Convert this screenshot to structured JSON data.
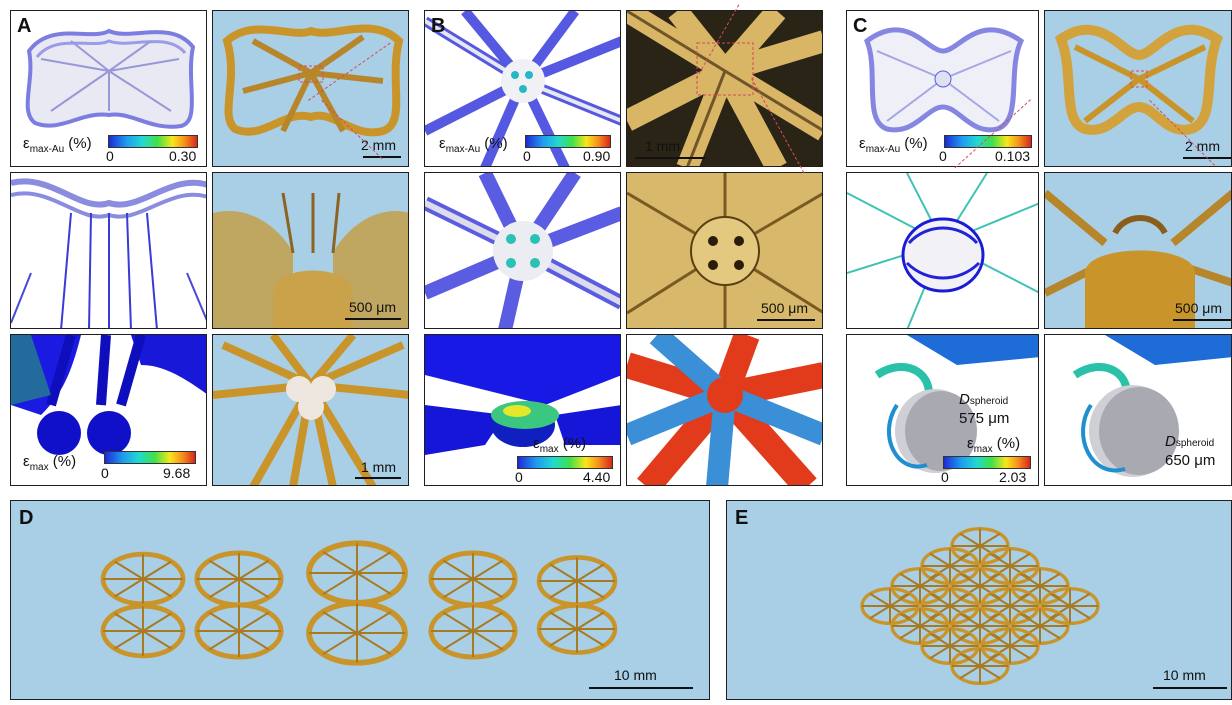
{
  "figure": {
    "panels": {
      "A": {
        "letter": "A",
        "scale_top": "2 mm",
        "scale_mid": "500 μm",
        "scale_bot": "1 mm",
        "cb_top": {
          "label": "ε",
          "sub": "max-Au",
          "unit": " (%)",
          "min": "0",
          "max": "0.30"
        },
        "cb_bot": {
          "label": "ε",
          "sub": "max",
          "unit": " (%)",
          "min": "0",
          "max": "9.68"
        }
      },
      "B": {
        "letter": "B",
        "scale_top": "1 mm",
        "scale_mid": "500 μm",
        "cb_top": {
          "label": "ε",
          "sub": "max-Au",
          "unit": " (%)",
          "min": "0",
          "max": "0.90"
        },
        "cb_bot": {
          "label": "ε",
          "sub": "max",
          "unit": " (%)",
          "min": "0",
          "max": "4.40"
        }
      },
      "C": {
        "letter": "C",
        "scale_top": "2 mm",
        "scale_mid": "500 μm",
        "cb_top": {
          "label": "ε",
          "sub": "max-Au",
          "unit": " (%)",
          "min": "0",
          "max": "0.103"
        },
        "cb_bot": {
          "label": "ε",
          "sub": "max",
          "unit": " (%)",
          "min": "0",
          "max": "2.03"
        },
        "d1": {
          "sym": "D",
          "sub": "spheroid",
          "value": "575 μm"
        },
        "d2": {
          "sym": "D",
          "sub": "spheroid",
          "value": "650 μm"
        }
      },
      "D": {
        "letter": "D",
        "scale": "10 mm"
      },
      "E": {
        "letter": "E",
        "scale": "10 mm"
      }
    },
    "colors": {
      "photo_bg": "#a9cfe6",
      "gold": "#c9952a",
      "sim_blue": "#7d7fe0",
      "strain_blue": "#1010e0"
    }
  }
}
